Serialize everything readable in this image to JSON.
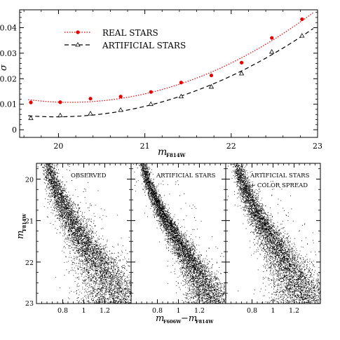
{
  "chart_data": [
    {
      "type": "scatter",
      "title": "",
      "xlabel": "m",
      "xlabel_sub": "F814W",
      "ylabel": "σ",
      "xlim": [
        19.55,
        23.0
      ],
      "ylim": [
        -0.003,
        0.047
      ],
      "xticks": [
        20,
        21,
        22,
        23
      ],
      "yticks": [
        0,
        0.01,
        0.02,
        0.03,
        0.04
      ],
      "ytick_labels": [
        "0",
        "0.01",
        "0.02",
        "0.03",
        "0.04"
      ],
      "grid": false,
      "legend_position": "top-left",
      "series": [
        {
          "name": "REAL STARS",
          "color": "#e60000",
          "marker": "filled-circle",
          "line": "dotted",
          "x": [
            19.68,
            20.02,
            20.37,
            20.72,
            21.07,
            21.42,
            21.77,
            22.12,
            22.47,
            22.82
          ],
          "y": [
            0.0107,
            0.0108,
            0.0122,
            0.013,
            0.0148,
            0.0185,
            0.0213,
            0.0263,
            0.036,
            0.0433
          ]
        },
        {
          "name": "ARTIFICIAL STARS",
          "color": "#000000",
          "marker": "open-triangle",
          "line": "dashed",
          "x": [
            19.68,
            20.02,
            20.37,
            20.72,
            21.07,
            21.42,
            21.77,
            22.12,
            22.47,
            22.82
          ],
          "y": [
            0.0045,
            0.0056,
            0.0063,
            0.0077,
            0.01,
            0.013,
            0.0168,
            0.022,
            0.0305,
            0.0368
          ]
        }
      ]
    },
    {
      "type": "scatter",
      "panels": [
        {
          "label": "OBSERVED",
          "spread": 1.0
        },
        {
          "label": "ARTIFICIAL STARS",
          "spread": 0.62
        },
        {
          "label": "ARTIFICIAL STARS",
          "label2": "+ COLOR SPREAD",
          "spread": 0.92
        }
      ],
      "xlabel": "m",
      "xlabel_sub1": "F606W",
      "xlabel_minus": "−m",
      "xlabel_sub2": "F814W",
      "ylabel": "m",
      "ylabel_sub": "F814W",
      "xlim": [
        0.55,
        1.45
      ],
      "ylim": [
        23.0,
        19.62
      ],
      "xticks": [
        0.8,
        1.0,
        1.2
      ],
      "xtick_labels": [
        "0.8",
        "1",
        "1.2"
      ],
      "yticks": [
        20,
        21,
        22,
        23
      ],
      "ridge": {
        "mag": [
          19.6,
          20.0,
          20.5,
          21.0,
          21.5,
          22.0,
          22.5,
          23.0
        ],
        "color": [
          0.66,
          0.7,
          0.78,
          0.88,
          1.0,
          1.12,
          1.23,
          1.33
        ]
      }
    }
  ]
}
